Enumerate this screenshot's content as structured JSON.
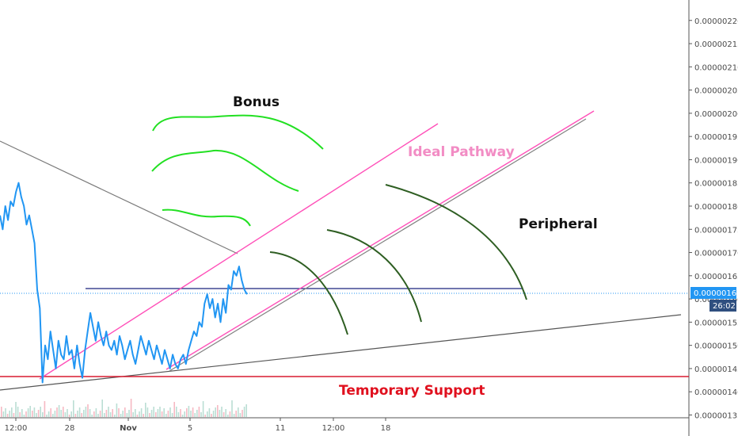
{
  "chart_data": {
    "type": "line",
    "title": "",
    "y_ticks": [
      "0.00000220",
      "0.00000215",
      "0.00000210",
      "0.00000205",
      "0.00000200",
      "0.00000195",
      "0.00000190",
      "0.00000185",
      "0.00000180",
      "0.00000175",
      "0.00000170",
      "0.00000165",
      "0.00000160",
      "0.00000155",
      "0.00000150",
      "0.00000145",
      "0.00000140",
      "0.00000135"
    ],
    "y_tick_values": [
      2.2,
      2.15,
      2.1,
      2.05,
      2.0,
      1.95,
      1.9,
      1.85,
      1.8,
      1.75,
      1.7,
      1.65,
      1.6,
      1.55,
      1.5,
      1.45,
      1.4,
      1.35
    ],
    "ylim": [
      1.344,
      2.244
    ],
    "y_unit_note": "values in 1e-6",
    "x_ticks": [
      "12:00",
      "28",
      "Nov",
      "5",
      "11",
      "12:00",
      "18"
    ],
    "current_price": "0.00000161",
    "countdown": "26:02",
    "annotations": {
      "bonus": "Bonus",
      "ideal": "Ideal Pathway",
      "peripheral": "Peripheral",
      "support": "Temporary Support"
    },
    "colors": {
      "price_line": "#2196f3",
      "ideal_line": "#ff4fb8",
      "support_line": "#d81b30",
      "resistance": "#1a237e",
      "bonus_arcs": "#22e022",
      "peripheral_arcs": "#2e5e22"
    },
    "series": [
      {
        "values": [
          1.78,
          1.75,
          1.8,
          1.77,
          1.81,
          1.8,
          1.83,
          1.85,
          1.82,
          1.8,
          1.76,
          1.78,
          1.75,
          1.72,
          1.62,
          1.58,
          1.42,
          1.5,
          1.47,
          1.53,
          1.49,
          1.45,
          1.51,
          1.48,
          1.47,
          1.52,
          1.48,
          1.49,
          1.45,
          1.5,
          1.46,
          1.43,
          1.49,
          1.53,
          1.57,
          1.54,
          1.51,
          1.55,
          1.52,
          1.5,
          1.53,
          1.5,
          1.49,
          1.51,
          1.48,
          1.52,
          1.5,
          1.47,
          1.49,
          1.51,
          1.48,
          1.46,
          1.49,
          1.52,
          1.5,
          1.48,
          1.51,
          1.49,
          1.47,
          1.5,
          1.48,
          1.46,
          1.49,
          1.47,
          1.45,
          1.48,
          1.46,
          1.45,
          1.47,
          1.48,
          1.46,
          1.49,
          1.51,
          1.53,
          1.52,
          1.55,
          1.54,
          1.59,
          1.61,
          1.58,
          1.6,
          1.56,
          1.59,
          1.55,
          1.6,
          1.57,
          1.63,
          1.62,
          1.66,
          1.65,
          1.67,
          1.64,
          1.62,
          1.61
        ]
      }
    ]
  }
}
